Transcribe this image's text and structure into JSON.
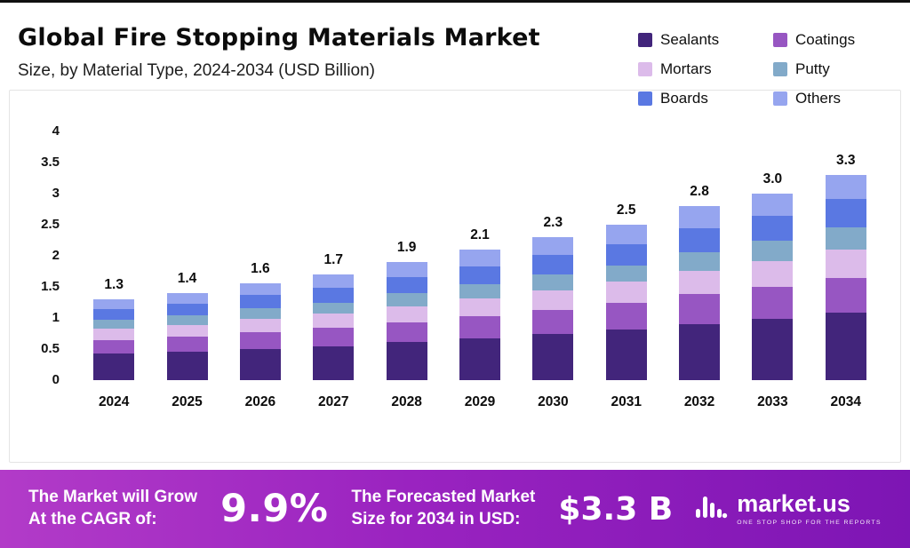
{
  "header": {
    "title": "Global Fire Stopping Materials Market",
    "subtitle": "Size, by Material Type, 2024-2034 (USD Billion)"
  },
  "legend": {
    "items": [
      {
        "label": "Sealants",
        "color": "#42257b"
      },
      {
        "label": "Coatings",
        "color": "#9756c2"
      },
      {
        "label": "Mortars",
        "color": "#dcbbea"
      },
      {
        "label": "Putty",
        "color": "#82aac9"
      },
      {
        "label": "Boards",
        "color": "#5a78e2"
      },
      {
        "label": "Others",
        "color": "#96a5ef"
      }
    ]
  },
  "chart_data": {
    "type": "bar",
    "stacked": true,
    "title": "Global Fire Stopping Materials Market",
    "subtitle": "Size, by Material Type, 2024-2034 (USD Billion)",
    "unit": "USD Billion",
    "categories": [
      "2024",
      "2025",
      "2026",
      "2027",
      "2028",
      "2029",
      "2030",
      "2031",
      "2032",
      "2033",
      "2034"
    ],
    "totals": [
      1.3,
      1.4,
      1.6,
      1.7,
      1.9,
      2.1,
      2.3,
      2.5,
      2.8,
      3.0,
      3.3
    ],
    "series": [
      {
        "name": "Sealants",
        "color": "#42257b",
        "values": [
          0.43,
          0.46,
          0.5,
          0.55,
          0.61,
          0.67,
          0.74,
          0.81,
          0.9,
          0.98,
          1.08
        ]
      },
      {
        "name": "Coatings",
        "color": "#9756c2",
        "values": [
          0.22,
          0.24,
          0.27,
          0.29,
          0.32,
          0.36,
          0.39,
          0.43,
          0.48,
          0.52,
          0.57
        ]
      },
      {
        "name": "Mortars",
        "color": "#dcbbea",
        "values": [
          0.18,
          0.19,
          0.22,
          0.23,
          0.26,
          0.29,
          0.32,
          0.34,
          0.38,
          0.41,
          0.45
        ]
      },
      {
        "name": "Putty",
        "color": "#82aac9",
        "values": [
          0.14,
          0.15,
          0.17,
          0.18,
          0.21,
          0.23,
          0.25,
          0.27,
          0.3,
          0.33,
          0.36
        ]
      },
      {
        "name": "Boards",
        "color": "#5a78e2",
        "values": [
          0.17,
          0.19,
          0.21,
          0.23,
          0.26,
          0.28,
          0.31,
          0.34,
          0.38,
          0.41,
          0.45
        ]
      },
      {
        "name": "Others",
        "color": "#96a5ef",
        "values": [
          0.16,
          0.17,
          0.19,
          0.22,
          0.24,
          0.27,
          0.29,
          0.31,
          0.36,
          0.35,
          0.39
        ]
      }
    ],
    "ylim": [
      0,
      4
    ],
    "yticks": [
      0,
      0.5,
      1,
      1.5,
      2,
      2.5,
      3,
      3.5,
      4
    ],
    "grid": false,
    "legend_position": "top-right"
  },
  "banner": {
    "cagr_label_line1": "The Market will Grow",
    "cagr_label_line2": "At the CAGR of:",
    "cagr_value": "9.9%",
    "forecast_label_line1": "The Forecasted Market",
    "forecast_label_line2": "Size for 2034 in USD:",
    "forecast_value": "$3.3 B",
    "brand": "market.us",
    "brand_tagline": "ONE STOP SHOP FOR THE REPORTS",
    "gradient_left": "#b23bc8",
    "gradient_mid": "#9a23c0",
    "gradient_right": "#7d15b4"
  }
}
